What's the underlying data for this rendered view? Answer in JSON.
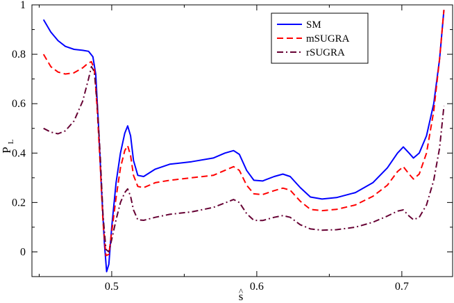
{
  "chart_data": {
    "type": "line",
    "title": "",
    "xlabel": "ŝ",
    "ylabel": "P_L",
    "ylabel_main": "P",
    "ylabel_sub": "L",
    "xlabel_main": "s",
    "xlabel_hat": "^",
    "xlim": [
      0.445,
      0.735
    ],
    "ylim": [
      -0.1,
      1.0
    ],
    "x_ticks": [
      0.5,
      0.6,
      0.7
    ],
    "x_tick_labels": [
      "0.5",
      "0.6",
      "0.7"
    ],
    "y_ticks": [
      0,
      0.2,
      0.4,
      0.6,
      0.8,
      1.0
    ],
    "y_tick_labels": [
      "0",
      "0.2",
      "0.4",
      "0.6",
      "0.8",
      "1"
    ],
    "grid": false,
    "legend_position": "top-right",
    "series": [
      {
        "name": "SM",
        "color": "#0000ff",
        "dash": "solid",
        "points": [
          [
            0.453,
            0.94
          ],
          [
            0.458,
            0.89
          ],
          [
            0.463,
            0.855
          ],
          [
            0.468,
            0.832
          ],
          [
            0.474,
            0.82
          ],
          [
            0.48,
            0.816
          ],
          [
            0.484,
            0.812
          ],
          [
            0.487,
            0.79
          ],
          [
            0.489,
            0.72
          ],
          [
            0.491,
            0.5
          ],
          [
            0.493,
            0.25
          ],
          [
            0.495,
            0.03
          ],
          [
            0.4965,
            -0.08
          ],
          [
            0.498,
            -0.05
          ],
          [
            0.5,
            0.1
          ],
          [
            0.503,
            0.28
          ],
          [
            0.506,
            0.4
          ],
          [
            0.509,
            0.48
          ],
          [
            0.511,
            0.51
          ],
          [
            0.513,
            0.47
          ],
          [
            0.515,
            0.37
          ],
          [
            0.518,
            0.31
          ],
          [
            0.522,
            0.305
          ],
          [
            0.53,
            0.335
          ],
          [
            0.54,
            0.355
          ],
          [
            0.555,
            0.365
          ],
          [
            0.57,
            0.38
          ],
          [
            0.578,
            0.4
          ],
          [
            0.584,
            0.41
          ],
          [
            0.588,
            0.395
          ],
          [
            0.593,
            0.33
          ],
          [
            0.598,
            0.29
          ],
          [
            0.604,
            0.287
          ],
          [
            0.612,
            0.305
          ],
          [
            0.618,
            0.315
          ],
          [
            0.623,
            0.305
          ],
          [
            0.63,
            0.26
          ],
          [
            0.637,
            0.222
          ],
          [
            0.645,
            0.214
          ],
          [
            0.655,
            0.22
          ],
          [
            0.668,
            0.24
          ],
          [
            0.68,
            0.28
          ],
          [
            0.69,
            0.34
          ],
          [
            0.697,
            0.4
          ],
          [
            0.701,
            0.425
          ],
          [
            0.705,
            0.4
          ],
          [
            0.708,
            0.38
          ],
          [
            0.712,
            0.4
          ],
          [
            0.717,
            0.47
          ],
          [
            0.722,
            0.6
          ],
          [
            0.726,
            0.78
          ],
          [
            0.729,
            0.98
          ]
        ]
      },
      {
        "name": "mSUGRA",
        "color": "#ff0000",
        "dash": "dashed",
        "points": [
          [
            0.453,
            0.8
          ],
          [
            0.458,
            0.75
          ],
          [
            0.463,
            0.728
          ],
          [
            0.468,
            0.72
          ],
          [
            0.474,
            0.725
          ],
          [
            0.48,
            0.745
          ],
          [
            0.484,
            0.765
          ],
          [
            0.486,
            0.77
          ],
          [
            0.488,
            0.74
          ],
          [
            0.49,
            0.58
          ],
          [
            0.492,
            0.36
          ],
          [
            0.494,
            0.12
          ],
          [
            0.496,
            -0.015
          ],
          [
            0.498,
            -0.01
          ],
          [
            0.5,
            0.08
          ],
          [
            0.503,
            0.22
          ],
          [
            0.506,
            0.34
          ],
          [
            0.509,
            0.41
          ],
          [
            0.511,
            0.43
          ],
          [
            0.513,
            0.39
          ],
          [
            0.515,
            0.31
          ],
          [
            0.518,
            0.265
          ],
          [
            0.522,
            0.26
          ],
          [
            0.53,
            0.28
          ],
          [
            0.54,
            0.29
          ],
          [
            0.555,
            0.3
          ],
          [
            0.57,
            0.31
          ],
          [
            0.578,
            0.33
          ],
          [
            0.584,
            0.345
          ],
          [
            0.588,
            0.33
          ],
          [
            0.593,
            0.27
          ],
          [
            0.598,
            0.235
          ],
          [
            0.604,
            0.232
          ],
          [
            0.612,
            0.248
          ],
          [
            0.618,
            0.258
          ],
          [
            0.623,
            0.25
          ],
          [
            0.63,
            0.205
          ],
          [
            0.637,
            0.172
          ],
          [
            0.645,
            0.167
          ],
          [
            0.655,
            0.172
          ],
          [
            0.668,
            0.19
          ],
          [
            0.68,
            0.225
          ],
          [
            0.69,
            0.27
          ],
          [
            0.697,
            0.325
          ],
          [
            0.701,
            0.345
          ],
          [
            0.705,
            0.315
          ],
          [
            0.708,
            0.295
          ],
          [
            0.712,
            0.315
          ],
          [
            0.717,
            0.4
          ],
          [
            0.722,
            0.57
          ],
          [
            0.726,
            0.78
          ],
          [
            0.729,
            0.98
          ]
        ]
      },
      {
        "name": "rSUGRA",
        "color": "#660033",
        "dash": "dashdot",
        "points": [
          [
            0.453,
            0.5
          ],
          [
            0.458,
            0.485
          ],
          [
            0.463,
            0.478
          ],
          [
            0.468,
            0.49
          ],
          [
            0.474,
            0.53
          ],
          [
            0.48,
            0.61
          ],
          [
            0.484,
            0.7
          ],
          [
            0.486,
            0.75
          ],
          [
            0.488,
            0.73
          ],
          [
            0.49,
            0.6
          ],
          [
            0.492,
            0.4
          ],
          [
            0.494,
            0.15
          ],
          [
            0.496,
            0.01
          ],
          [
            0.498,
            0.0
          ],
          [
            0.5,
            0.05
          ],
          [
            0.503,
            0.13
          ],
          [
            0.506,
            0.2
          ],
          [
            0.509,
            0.24
          ],
          [
            0.511,
            0.255
          ],
          [
            0.513,
            0.225
          ],
          [
            0.515,
            0.17
          ],
          [
            0.518,
            0.13
          ],
          [
            0.522,
            0.128
          ],
          [
            0.53,
            0.14
          ],
          [
            0.54,
            0.152
          ],
          [
            0.555,
            0.162
          ],
          [
            0.57,
            0.18
          ],
          [
            0.578,
            0.198
          ],
          [
            0.584,
            0.212
          ],
          [
            0.588,
            0.2
          ],
          [
            0.593,
            0.155
          ],
          [
            0.598,
            0.128
          ],
          [
            0.604,
            0.127
          ],
          [
            0.612,
            0.14
          ],
          [
            0.618,
            0.147
          ],
          [
            0.623,
            0.14
          ],
          [
            0.63,
            0.11
          ],
          [
            0.637,
            0.093
          ],
          [
            0.645,
            0.088
          ],
          [
            0.655,
            0.09
          ],
          [
            0.668,
            0.1
          ],
          [
            0.68,
            0.12
          ],
          [
            0.69,
            0.145
          ],
          [
            0.697,
            0.165
          ],
          [
            0.701,
            0.17
          ],
          [
            0.705,
            0.145
          ],
          [
            0.708,
            0.13
          ],
          [
            0.712,
            0.14
          ],
          [
            0.717,
            0.19
          ],
          [
            0.722,
            0.29
          ],
          [
            0.726,
            0.42
          ],
          [
            0.729,
            0.59
          ]
        ]
      }
    ]
  }
}
